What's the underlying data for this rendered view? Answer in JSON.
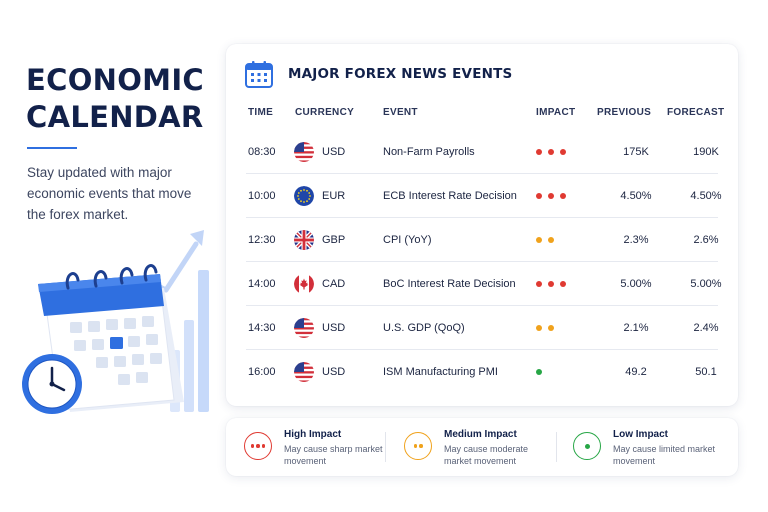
{
  "hero": {
    "title_line1": "ECONOMIC",
    "title_line2": "CALENDAR",
    "subtitle": "Stay updated with major economic events that move the forex market."
  },
  "card": {
    "title": "MAJOR FOREX NEWS EVENTS",
    "icon": "calendar-icon",
    "columns": {
      "time": "TIME",
      "currency": "CURRENCY",
      "event": "EVENT",
      "impact": "IMPACT",
      "previous": "PREVIOUS",
      "forecast": "FORECAST"
    },
    "rows": [
      {
        "time": "08:30",
        "flag": "us-flag-icon",
        "currency": "USD",
        "event": "Non-Farm Payrolls",
        "impact": "high",
        "impact_dots": 3,
        "previous": "175K",
        "forecast": "190K"
      },
      {
        "time": "10:00",
        "flag": "eu-flag-icon",
        "currency": "EUR",
        "event": "ECB Interest Rate Decision",
        "impact": "high",
        "impact_dots": 3,
        "previous": "4.50%",
        "forecast": "4.50%"
      },
      {
        "time": "12:30",
        "flag": "uk-flag-icon",
        "currency": "GBP",
        "event": "CPI (YoY)",
        "impact": "medium",
        "impact_dots": 2,
        "previous": "2.3%",
        "forecast": "2.6%"
      },
      {
        "time": "14:00",
        "flag": "ca-flag-icon",
        "currency": "CAD",
        "event": "BoC Interest Rate Decision",
        "impact": "high",
        "impact_dots": 3,
        "previous": "5.00%",
        "forecast": "5.00%"
      },
      {
        "time": "14:30",
        "flag": "us-flag-icon",
        "currency": "USD",
        "event": "U.S. GDP (QoQ)",
        "impact": "medium",
        "impact_dots": 2,
        "previous": "2.1%",
        "forecast": "2.4%"
      },
      {
        "time": "16:00",
        "flag": "us-flag-icon",
        "currency": "USD",
        "event": "ISM Manufacturing PMI",
        "impact": "low",
        "impact_dots": 1,
        "previous": "49.2",
        "forecast": "50.1"
      }
    ]
  },
  "legend": [
    {
      "title": "High Impact",
      "desc": "May cause sharp market movement",
      "color": "#e03a32",
      "dots": 3
    },
    {
      "title": "Medium Impact",
      "desc": "May cause moderate market movement",
      "color": "#f0a21c",
      "dots": 2
    },
    {
      "title": "Low Impact",
      "desc": "May cause limited market movement",
      "color": "#27a646",
      "dots": 1
    }
  ],
  "colors": {
    "accent": "#2f6fe0",
    "high": "#e03a32",
    "medium": "#f0a21c",
    "low": "#27a646",
    "title": "#12214a"
  }
}
